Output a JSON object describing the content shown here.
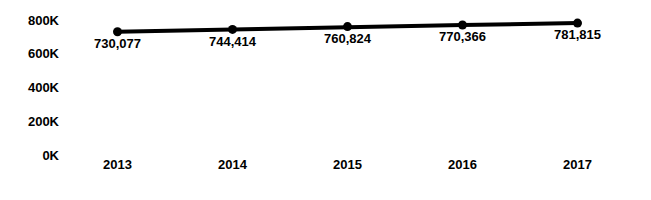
{
  "chart_data": {
    "type": "line",
    "categories": [
      "2013",
      "2014",
      "2015",
      "2016",
      "2017"
    ],
    "values": [
      730077,
      744414,
      760824,
      770366,
      781815
    ],
    "value_labels": [
      "730,077",
      "744,414",
      "760,824",
      "770,366",
      "781,815"
    ],
    "color": "#000000",
    "marker": "circle",
    "ylim": [
      0,
      800000
    ],
    "yticks": [
      {
        "value": 0,
        "label": "0K"
      },
      {
        "value": 200000,
        "label": "200K"
      },
      {
        "value": 400000,
        "label": "400K"
      },
      {
        "value": 600000,
        "label": "600K"
      },
      {
        "value": 800000,
        "label": "800K"
      }
    ],
    "grid": false,
    "data_labels": true
  }
}
